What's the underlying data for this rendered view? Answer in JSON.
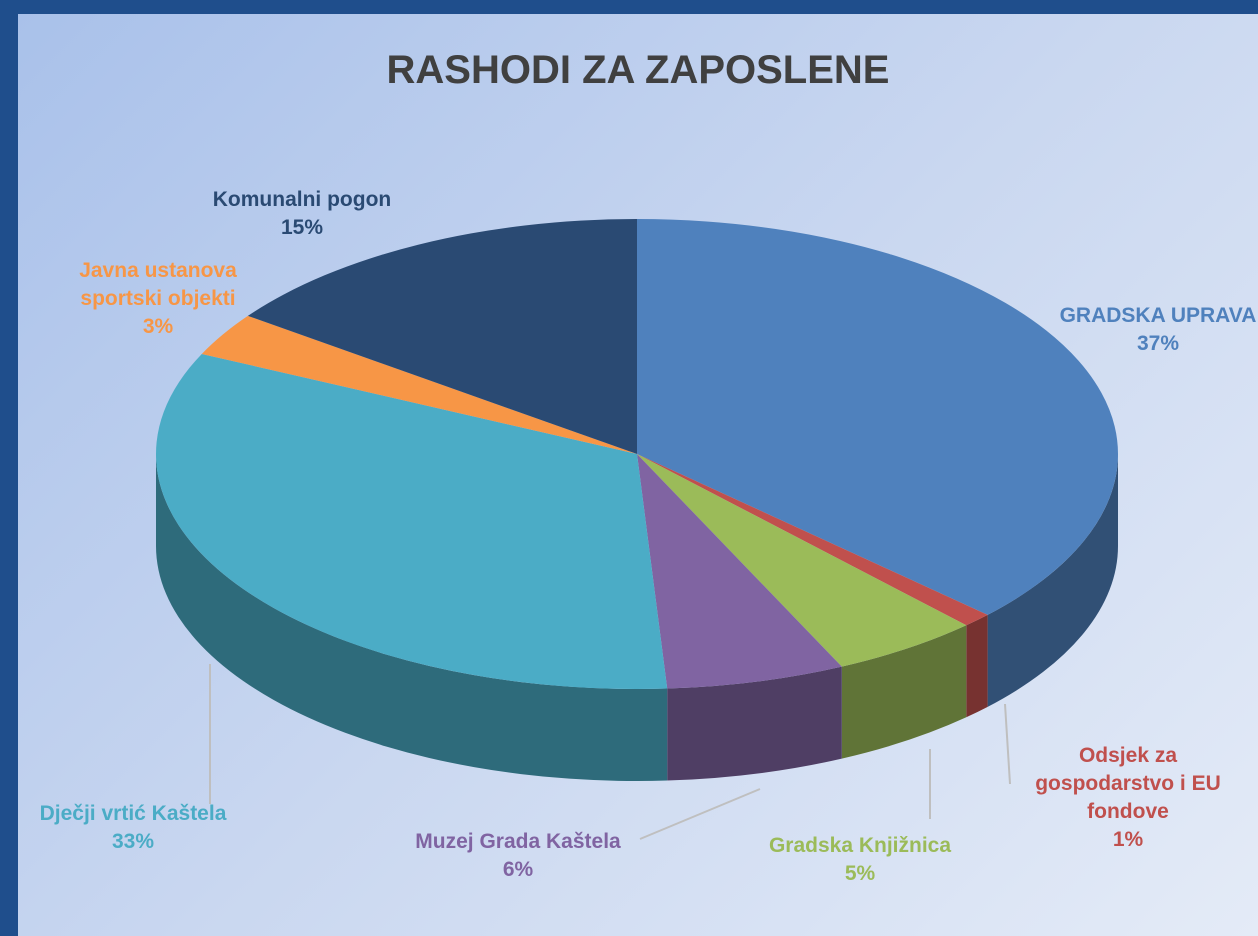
{
  "chart_data": {
    "type": "pie",
    "title": "RASHODI ZA ZAPOSLENE",
    "categories": [
      "GRADSKA UPRAVA",
      "Odsjek za gospodarstvo i EU fondove",
      "Gradska Knjižnica",
      "Muzej Grada Kaštela",
      "Dječji vrtić Kaštela",
      "Javna ustanova sportski objekti",
      "Komunalni pogon"
    ],
    "values": [
      37,
      1,
      5,
      6,
      33,
      3,
      15
    ],
    "value_labels": [
      "37%",
      "1%",
      "5%",
      "6%",
      "33%",
      "3%",
      "15%"
    ],
    "colors": [
      "#4f81bd",
      "#c0504d",
      "#9bbb59",
      "#8064a2",
      "#4bacc6",
      "#f79646",
      "#2a4a73"
    ]
  }
}
